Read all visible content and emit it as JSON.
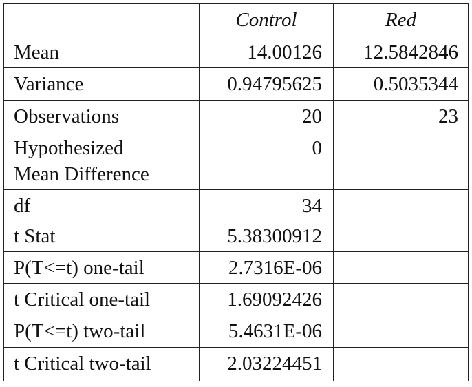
{
  "table": {
    "header": [
      "Control",
      "Red"
    ],
    "rows": [
      {
        "label": [
          "Mean"
        ],
        "control": "14.00126",
        "red": "12.5842846"
      },
      {
        "label": [
          "Variance"
        ],
        "control": "0.94795625",
        "red": "0.5035344"
      },
      {
        "label": [
          "Observations"
        ],
        "control": "20",
        "red": "23"
      },
      {
        "label": [
          "Hypothesized",
          "Mean Difference"
        ],
        "control": "0"
      },
      {
        "label": [
          "df"
        ],
        "control": "34"
      },
      {
        "label": [
          "t Stat"
        ],
        "control": "5.38300912"
      },
      {
        "label": [
          "P(T<=t) one-tail"
        ],
        "control": "2.7316E-06"
      },
      {
        "label": [
          "t Critical one-tail"
        ],
        "control": "1.69092426"
      },
      {
        "label": [
          "P(T<=t) two-tail"
        ],
        "control": "5.4631E-06"
      },
      {
        "label": [
          "t Critical two-tail"
        ],
        "control": "2.03224451"
      }
    ]
  }
}
